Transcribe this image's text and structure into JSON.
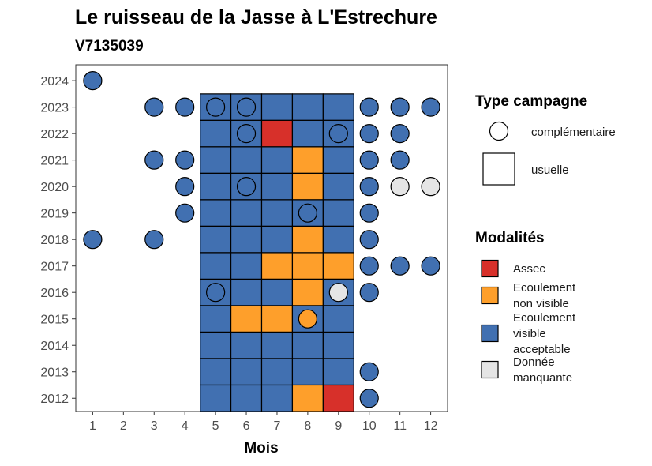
{
  "chart_data": {
    "type": "heatmap",
    "title": "Le ruisseau de la Jasse à L'Estrechure",
    "subtitle": "V7135039",
    "xlabel": "Mois",
    "ylabel": "",
    "x_ticks": [
      "1",
      "2",
      "3",
      "4",
      "5",
      "6",
      "7",
      "8",
      "9",
      "10",
      "11",
      "12"
    ],
    "y_ticks": [
      "2012",
      "2013",
      "2014",
      "2015",
      "2016",
      "2017",
      "2018",
      "2019",
      "2020",
      "2021",
      "2022",
      "2023",
      "2024"
    ],
    "colors": {
      "Assec": "#d7302a",
      "Ecoulement non visible": "#fe9f2b",
      "Ecoulement visible acceptable": "#4170b1",
      "Donnée manquante": "#e5e5e5"
    },
    "legend_type": {
      "title": "Type campagne",
      "entries": [
        {
          "key": "complementaire",
          "label": "complémentaire",
          "shape": "circle"
        },
        {
          "key": "usuelle",
          "label": "usuelle",
          "shape": "square"
        }
      ]
    },
    "legend_modalites": {
      "title": "Modalités",
      "entries": [
        {
          "key": "Assec",
          "lines": [
            "Assec"
          ]
        },
        {
          "key": "Ecoulement non visible",
          "lines": [
            "Ecoulement",
            "non visible"
          ]
        },
        {
          "key": "Ecoulement visible acceptable",
          "lines": [
            "Ecoulement",
            "visible",
            "acceptable"
          ]
        },
        {
          "key": "Donnée manquante",
          "lines": [
            "Donnée",
            "manquante"
          ]
        }
      ]
    },
    "usuelle": [
      {
        "year": 2023,
        "values": {
          "5": "Ecoulement visible acceptable",
          "6": "Ecoulement visible acceptable",
          "7": "Ecoulement visible acceptable",
          "8": "Ecoulement visible acceptable",
          "9": "Ecoulement visible acceptable"
        }
      },
      {
        "year": 2022,
        "values": {
          "5": "Ecoulement visible acceptable",
          "6": "Ecoulement visible acceptable",
          "7": "Assec",
          "8": "Ecoulement visible acceptable",
          "9": "Ecoulement visible acceptable"
        }
      },
      {
        "year": 2021,
        "values": {
          "5": "Ecoulement visible acceptable",
          "6": "Ecoulement visible acceptable",
          "7": "Ecoulement visible acceptable",
          "8": "Ecoulement non visible",
          "9": "Ecoulement visible acceptable"
        }
      },
      {
        "year": 2020,
        "values": {
          "5": "Ecoulement visible acceptable",
          "6": "Ecoulement visible acceptable",
          "7": "Ecoulement visible acceptable",
          "8": "Ecoulement non visible",
          "9": "Ecoulement visible acceptable"
        }
      },
      {
        "year": 2019,
        "values": {
          "5": "Ecoulement visible acceptable",
          "6": "Ecoulement visible acceptable",
          "7": "Ecoulement visible acceptable",
          "8": "Ecoulement visible acceptable",
          "9": "Ecoulement visible acceptable"
        }
      },
      {
        "year": 2018,
        "values": {
          "5": "Ecoulement visible acceptable",
          "6": "Ecoulement visible acceptable",
          "7": "Ecoulement visible acceptable",
          "8": "Ecoulement non visible",
          "9": "Ecoulement visible acceptable"
        }
      },
      {
        "year": 2017,
        "values": {
          "5": "Ecoulement visible acceptable",
          "6": "Ecoulement visible acceptable",
          "7": "Ecoulement non visible",
          "8": "Ecoulement non visible",
          "9": "Ecoulement non visible"
        }
      },
      {
        "year": 2016,
        "values": {
          "5": "Ecoulement visible acceptable",
          "6": "Ecoulement visible acceptable",
          "7": "Ecoulement visible acceptable",
          "8": "Ecoulement non visible",
          "9": "Ecoulement visible acceptable"
        }
      },
      {
        "year": 2015,
        "values": {
          "5": "Ecoulement visible acceptable",
          "6": "Ecoulement non visible",
          "7": "Ecoulement non visible",
          "8": "Ecoulement visible acceptable",
          "9": "Ecoulement visible acceptable"
        }
      },
      {
        "year": 2014,
        "values": {
          "5": "Ecoulement visible acceptable",
          "6": "Ecoulement visible acceptable",
          "7": "Ecoulement visible acceptable",
          "8": "Ecoulement visible acceptable",
          "9": "Ecoulement visible acceptable"
        }
      },
      {
        "year": 2013,
        "values": {
          "5": "Ecoulement visible acceptable",
          "6": "Ecoulement visible acceptable",
          "7": "Ecoulement visible acceptable",
          "8": "Ecoulement visible acceptable",
          "9": "Ecoulement visible acceptable"
        }
      },
      {
        "year": 2012,
        "values": {
          "5": "Ecoulement visible acceptable",
          "6": "Ecoulement visible acceptable",
          "7": "Ecoulement visible acceptable",
          "8": "Ecoulement non visible",
          "9": "Assec"
        }
      }
    ],
    "complementaire": [
      {
        "year": 2024,
        "month": 1,
        "value": "Ecoulement visible acceptable"
      },
      {
        "year": 2023,
        "month": 3,
        "value": "Ecoulement visible acceptable"
      },
      {
        "year": 2023,
        "month": 4,
        "value": "Ecoulement visible acceptable"
      },
      {
        "year": 2023,
        "month": 5,
        "value": "Ecoulement visible acceptable"
      },
      {
        "year": 2023,
        "month": 6,
        "value": "Ecoulement visible acceptable"
      },
      {
        "year": 2023,
        "month": 10,
        "value": "Ecoulement visible acceptable"
      },
      {
        "year": 2023,
        "month": 11,
        "value": "Ecoulement visible acceptable"
      },
      {
        "year": 2023,
        "month": 12,
        "value": "Ecoulement visible acceptable"
      },
      {
        "year": 2022,
        "month": 6,
        "value": "Ecoulement visible acceptable"
      },
      {
        "year": 2022,
        "month": 9,
        "value": "Ecoulement visible acceptable"
      },
      {
        "year": 2022,
        "month": 10,
        "value": "Ecoulement visible acceptable"
      },
      {
        "year": 2022,
        "month": 11,
        "value": "Ecoulement visible acceptable"
      },
      {
        "year": 2021,
        "month": 3,
        "value": "Ecoulement visible acceptable"
      },
      {
        "year": 2021,
        "month": 4,
        "value": "Ecoulement visible acceptable"
      },
      {
        "year": 2021,
        "month": 10,
        "value": "Ecoulement visible acceptable"
      },
      {
        "year": 2021,
        "month": 11,
        "value": "Ecoulement visible acceptable"
      },
      {
        "year": 2020,
        "month": 4,
        "value": "Ecoulement visible acceptable"
      },
      {
        "year": 2020,
        "month": 6,
        "value": "Ecoulement visible acceptable"
      },
      {
        "year": 2020,
        "month": 10,
        "value": "Ecoulement visible acceptable"
      },
      {
        "year": 2020,
        "month": 11,
        "value": "Donnée manquante"
      },
      {
        "year": 2020,
        "month": 12,
        "value": "Donnée manquante"
      },
      {
        "year": 2019,
        "month": 4,
        "value": "Ecoulement visible acceptable"
      },
      {
        "year": 2019,
        "month": 8,
        "value": "Ecoulement visible acceptable"
      },
      {
        "year": 2019,
        "month": 10,
        "value": "Ecoulement visible acceptable"
      },
      {
        "year": 2018,
        "month": 1,
        "value": "Ecoulement visible acceptable"
      },
      {
        "year": 2018,
        "month": 3,
        "value": "Ecoulement visible acceptable"
      },
      {
        "year": 2018,
        "month": 10,
        "value": "Ecoulement visible acceptable"
      },
      {
        "year": 2017,
        "month": 10,
        "value": "Ecoulement visible acceptable"
      },
      {
        "year": 2017,
        "month": 11,
        "value": "Ecoulement visible acceptable"
      },
      {
        "year": 2017,
        "month": 12,
        "value": "Ecoulement visible acceptable"
      },
      {
        "year": 2016,
        "month": 5,
        "value": "Ecoulement visible acceptable"
      },
      {
        "year": 2016,
        "month": 9,
        "value": "Donnée manquante"
      },
      {
        "year": 2016,
        "month": 10,
        "value": "Ecoulement visible acceptable"
      },
      {
        "year": 2015,
        "month": 8,
        "value": "Ecoulement non visible"
      },
      {
        "year": 2013,
        "month": 10,
        "value": "Ecoulement visible acceptable"
      },
      {
        "year": 2012,
        "month": 10,
        "value": "Ecoulement visible acceptable"
      }
    ]
  }
}
